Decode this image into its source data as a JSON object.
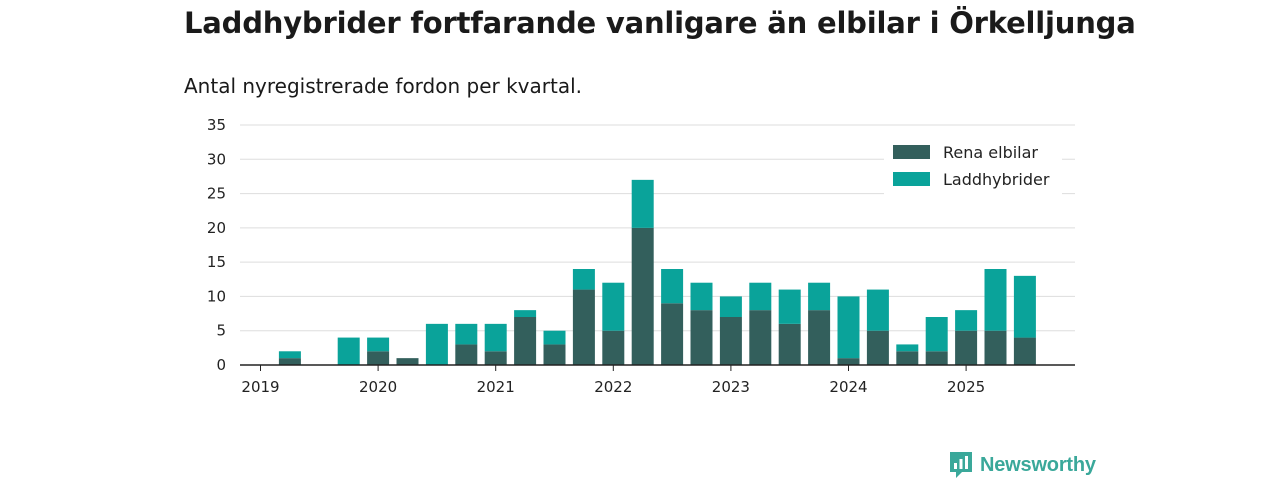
{
  "title": "Laddhybrider fortfarande vanligare än elbilar i Örkelljunga",
  "subtitle": "Antal nyregistrerade fordon per kvartal.",
  "colors": {
    "rena": "#335f5c",
    "ladd": "#0aa39a",
    "grid": "#dddddd",
    "axis": "#222222"
  },
  "brand": {
    "name": "Newsworthy",
    "color": "#3aa89a",
    "icon": "newsworthy-logo-icon"
  },
  "chart_data": {
    "type": "bar",
    "stacked": true,
    "title": "Laddhybrider fortfarande vanligare än elbilar i Örkelljunga",
    "subtitle": "Antal nyregistrerade fordon per kvartal.",
    "xlabel": "",
    "ylabel": "",
    "ylim": [
      0,
      35
    ],
    "yticks": [
      0,
      5,
      10,
      15,
      20,
      25,
      30,
      35
    ],
    "grid": true,
    "legend_position": "top-right",
    "categories": [
      "2019 Q1",
      "2019 Q2",
      "2019 Q3",
      "2019 Q4",
      "2020 Q1",
      "2020 Q2",
      "2020 Q3",
      "2020 Q4",
      "2021 Q1",
      "2021 Q2",
      "2021 Q3",
      "2021 Q4",
      "2022 Q1",
      "2022 Q2",
      "2022 Q3",
      "2022 Q4",
      "2023 Q1",
      "2023 Q2",
      "2023 Q3",
      "2023 Q4",
      "2024 Q1",
      "2024 Q2",
      "2024 Q3",
      "2024 Q4",
      "2025 Q1",
      "2025 Q2",
      "2025 Q3"
    ],
    "year_labels": [
      "2019",
      "2020",
      "2021",
      "2022",
      "2023",
      "2024",
      "2025"
    ],
    "series": [
      {
        "name": "Rena elbilar",
        "values": [
          0,
          1,
          0,
          0,
          2,
          1,
          0,
          3,
          2,
          7,
          3,
          11,
          5,
          20,
          9,
          8,
          7,
          8,
          6,
          8,
          1,
          5,
          2,
          2,
          5,
          5,
          4
        ]
      },
      {
        "name": "Laddhybrider",
        "values": [
          0,
          1,
          0,
          4,
          2,
          0,
          6,
          3,
          4,
          1,
          2,
          3,
          7,
          7,
          5,
          4,
          3,
          4,
          5,
          4,
          9,
          6,
          1,
          5,
          3,
          9,
          9
        ]
      }
    ]
  }
}
